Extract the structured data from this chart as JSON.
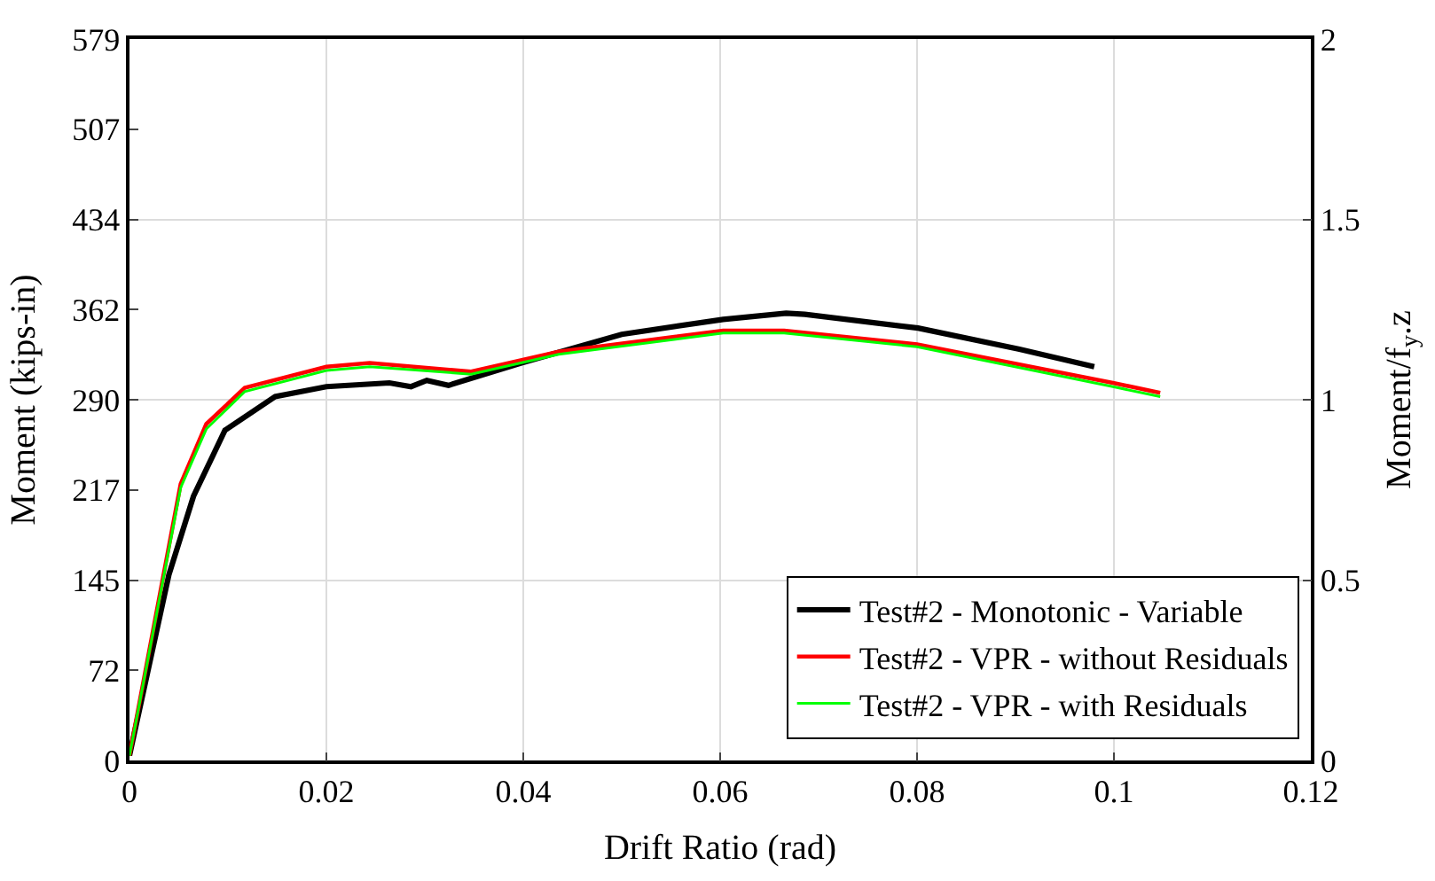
{
  "chart_data": {
    "type": "line",
    "xlabel": "Drift Ratio (rad)",
    "ylabel": "Moment (kips-in)",
    "y2label": "Moment/f$_{y}$.z",
    "xlim": [
      0,
      0.12
    ],
    "xticks": [
      0,
      0.02,
      0.04,
      0.06,
      0.08,
      0.1,
      0.12
    ],
    "ylim": [
      0,
      579
    ],
    "yticks": [
      0,
      {
        "value": 72.375,
        "label": "72"
      },
      {
        "value": 144.75,
        "label": "145"
      },
      {
        "value": 217.125,
        "label": "217"
      },
      {
        "value": 289.5,
        "label": "290"
      },
      {
        "value": 361.875,
        "label": "362"
      },
      {
        "value": 434.25,
        "label": "434"
      },
      {
        "value": 506.625,
        "label": "507"
      },
      579
    ],
    "y2lim": [
      0,
      2
    ],
    "y2ticks": [
      0,
      0.5,
      1,
      1.5,
      2
    ],
    "grid": true,
    "legend": "bottom right",
    "line_style": "solid",
    "marker": "none",
    "series": [
      {
        "name": "Test#2 - Monotonic - Variable",
        "color": "#000000",
        "x": [
          0,
          0.004,
          0.0065,
          0.0097,
          0.0148,
          0.02,
          0.0264,
          0.0286,
          0.0302,
          0.0324,
          0.0398,
          0.05,
          0.0603,
          0.0667,
          0.0686,
          0.0801,
          0.0904,
          0.098
        ],
        "values": [
          4,
          149,
          212,
          265,
          292,
          300,
          303,
          300,
          305,
          301,
          319,
          342,
          354,
          359,
          358,
          347,
          330,
          316
        ]
      },
      {
        "name": "Test#2 - VPR - without Residuals",
        "color": "#ff0000",
        "x": [
          0,
          0.0052,
          0.0078,
          0.0117,
          0.02,
          0.0244,
          0.0347,
          0.0436,
          0.0603,
          0.0665,
          0.08,
          0.0999,
          0.1047
        ],
        "values": [
          4,
          222,
          270,
          299,
          316,
          319,
          312,
          328,
          345,
          345,
          334,
          303,
          295
        ]
      },
      {
        "name": "Test#2 - VPR - with Residuals",
        "color": "#00ff00",
        "x": [
          0,
          0.0052,
          0.0078,
          0.0117,
          0.02,
          0.0244,
          0.0347,
          0.0436,
          0.0603,
          0.0665,
          0.08,
          0.0999,
          0.1047
        ],
        "values": [
          4,
          219,
          266,
          296,
          313,
          316,
          310,
          326,
          343,
          343,
          332,
          300,
          292
        ]
      }
    ]
  }
}
